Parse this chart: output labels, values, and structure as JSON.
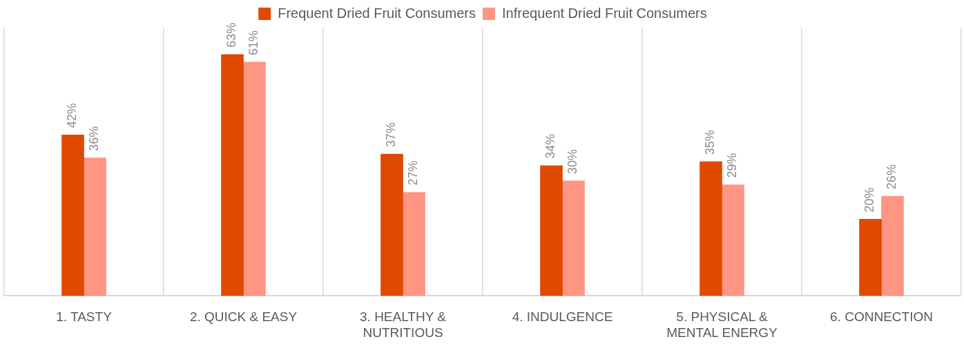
{
  "chart_data": {
    "type": "bar",
    "categories": [
      "1. TASTY",
      "2. QUICK & EASY",
      "3. HEALTHY & NUTRITIOUS",
      "4. INDULGENCE",
      "5. PHYSICAL & MENTAL ENERGY",
      "6. CONNECTION"
    ],
    "series": [
      {
        "name": "Frequent Dried Fruit Consumers",
        "color": "#e04a00",
        "values": [
          42,
          63,
          37,
          34,
          35,
          20
        ],
        "value_labels": [
          "42%",
          "63%",
          "37%",
          "34%",
          "35%",
          "20%"
        ]
      },
      {
        "name": "Infrequent Dried Fruit Consumers",
        "color": "#ff9583",
        "values": [
          36,
          61,
          27,
          30,
          29,
          26
        ],
        "value_labels": [
          "36%",
          "61%",
          "27%",
          "30%",
          "29%",
          "26%"
        ]
      }
    ],
    "ylim": [
      0,
      70
    ],
    "tick_labels": "x",
    "grid": "x",
    "legend": "top"
  }
}
